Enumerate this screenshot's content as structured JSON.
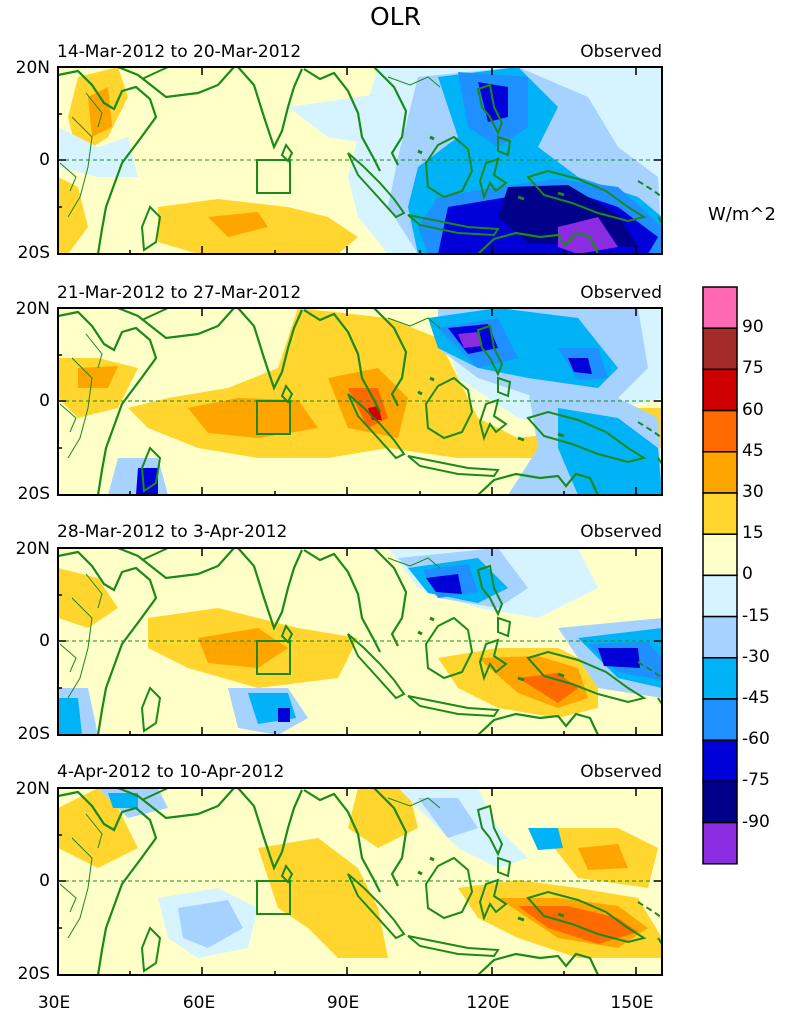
{
  "title": "OLR",
  "units": "W/m^2",
  "source_label": "Observed",
  "x_ticks": [
    "30E",
    "60E",
    "90E",
    "120E",
    "150E"
  ],
  "y_ticks": [
    "20N",
    "0",
    "20S"
  ],
  "panels": [
    {
      "period": "14-Mar-2012 to 20-Mar-2012",
      "label": "Observed"
    },
    {
      "period": "21-Mar-2012 to 27-Mar-2012",
      "label": "Observed"
    },
    {
      "period": "28-Mar-2012 to 3-Apr-2012",
      "label": "Observed"
    },
    {
      "period": "4-Apr-2012 to 10-Apr-2012",
      "label": "Observed"
    }
  ],
  "colorbar": {
    "labels": [
      "90",
      "75",
      "60",
      "45",
      "30",
      "15",
      "0",
      "-15",
      "-30",
      "-45",
      "-60",
      "-75",
      "-90"
    ],
    "colors": [
      "#ff69b4",
      "#a52a2a",
      "#d10000",
      "#ff6a00",
      "#ffa500",
      "#ffd52e",
      "#ffffc8",
      "#d6f4ff",
      "#a6d2ff",
      "#00b2f6",
      "#1e90ff",
      "#0000d8",
      "#00008b",
      "#8b2be2"
    ]
  },
  "colors": {
    "coast": "#1a8a1a",
    "background": "#ffffc8"
  }
}
